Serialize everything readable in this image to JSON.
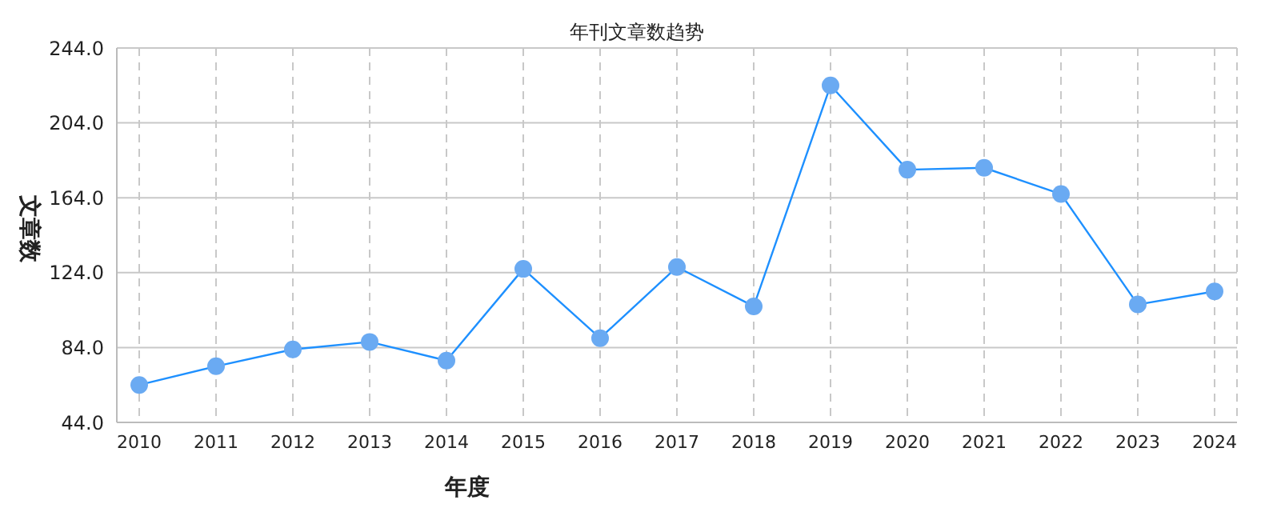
{
  "chart_data": {
    "type": "line",
    "title": "年刊文章数趋势",
    "xlabel": "年度",
    "ylabel": "文章数",
    "categories": [
      "2010",
      "2011",
      "2012",
      "2013",
      "2014",
      "2015",
      "2016",
      "2017",
      "2018",
      "2019",
      "2020",
      "2021",
      "2022",
      "2023",
      "2024"
    ],
    "series": [
      {
        "color": "#1e90ff",
        "values": [
          64,
          74,
          83,
          87,
          77,
          126,
          89,
          127,
          106,
          224,
          179,
          180,
          166,
          107,
          114
        ]
      }
    ],
    "marker": "circle",
    "line_style": "solid",
    "grid": true,
    "legend": false,
    "ylim": [
      44,
      244
    ],
    "yticks": [
      {
        "value": 44,
        "label": "44.0"
      },
      {
        "value": 84,
        "label": "84.0"
      },
      {
        "value": 124,
        "label": "124.0"
      },
      {
        "value": 164,
        "label": "164.0"
      },
      {
        "value": 204,
        "label": "204.0"
      },
      {
        "value": 244,
        "label": "244.0"
      }
    ]
  }
}
